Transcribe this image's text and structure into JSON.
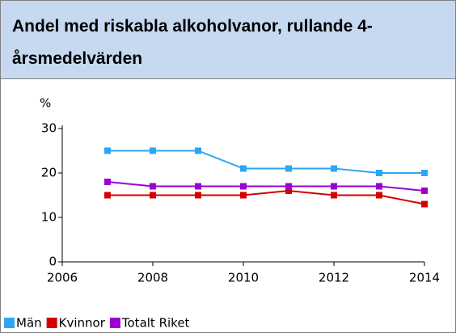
{
  "header": {
    "title": "Andel med riskabla alkoholvanor, rullande 4-årsmedelvärden"
  },
  "chart_data": {
    "type": "line",
    "y_label": "%",
    "x": [
      2007,
      2008,
      2009,
      2010,
      2011,
      2012,
      2013,
      2014
    ],
    "series": [
      {
        "name": "Män",
        "color": "#2ea6f5",
        "values": [
          25,
          25,
          25,
          21,
          21,
          21,
          20,
          20
        ]
      },
      {
        "name": "Kvinnor",
        "color": "#d40000",
        "values": [
          15,
          15,
          15,
          15,
          16,
          15,
          15,
          13
        ]
      },
      {
        "name": "Totalt Riket",
        "color": "#9b00d3",
        "values": [
          18,
          17,
          17,
          17,
          17,
          17,
          17,
          16
        ]
      }
    ],
    "xlim": [
      2006,
      2014
    ],
    "xticks": [
      2006,
      2008,
      2010,
      2012,
      2014
    ],
    "ylim": [
      0,
      30
    ],
    "yticks": [
      0,
      10,
      20,
      30
    ]
  }
}
